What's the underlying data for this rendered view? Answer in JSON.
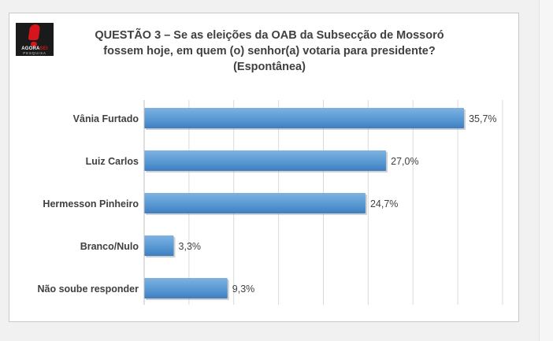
{
  "logo": {
    "brand_a": "AGORA",
    "brand_b": "SEI",
    "sub": "PESQUISA"
  },
  "title_lines": [
    "QUESTÃO 3 – Se as eleições da OAB da Subsecção de Mossoró",
    "fossem hoje, em quem (o) senhor(a) votaria para presidente?",
    "(Espontânea)"
  ],
  "chart_data": {
    "type": "bar",
    "orientation": "horizontal",
    "categories": [
      "Vânia Furtado",
      "Luiz Carlos",
      "Hermesson Pinheiro",
      "Branco/Nulo",
      "Não soube responder"
    ],
    "values": [
      35.7,
      27.0,
      24.7,
      3.3,
      9.3
    ],
    "data_labels": [
      "35,7%",
      "27,0%",
      "24,7%",
      "3,3%",
      "9,3%"
    ],
    "xlim": [
      0,
      40
    ],
    "grid": true,
    "bar_color": "#5b9bd5"
  }
}
